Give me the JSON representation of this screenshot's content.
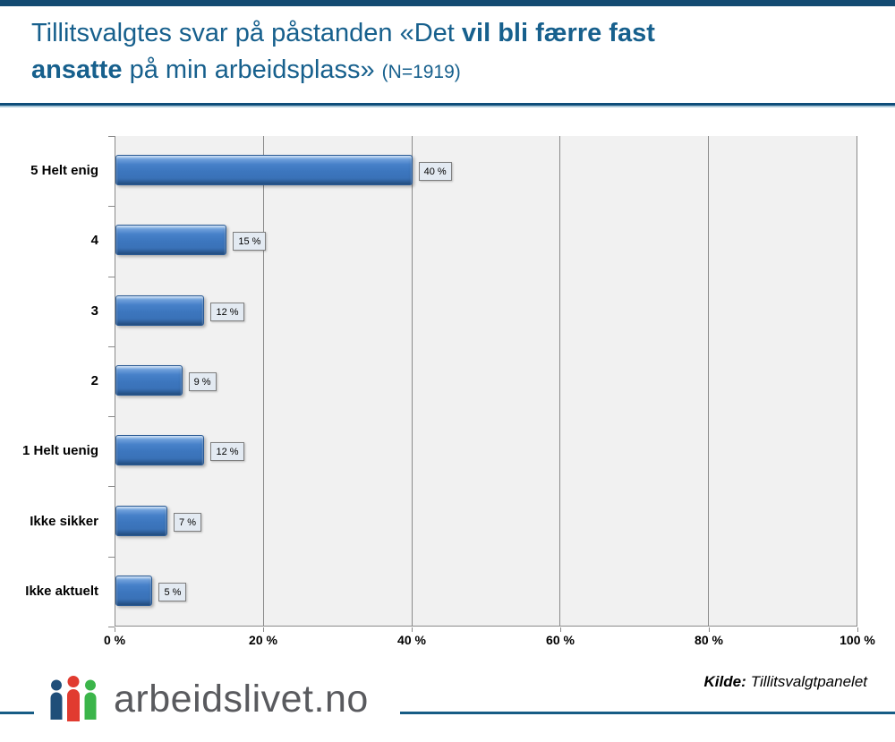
{
  "header": {
    "title_line1_regular": "Tillitsvalgtes svar på påstanden «Det ",
    "title_line1_bold": "vil bli færre fast",
    "title_line2_bold": "ansatte",
    "title_line2_regular": " på min arbeidsplass»",
    "title_n": "(N=1919)"
  },
  "chart_data": {
    "type": "bar",
    "orientation": "horizontal",
    "title": "Tillitsvalgtes svar på påstanden «Det vil bli færre fast ansatte på min arbeidsplass» (N=1919)",
    "categories": [
      "5 Helt enig",
      "4",
      "3",
      "2",
      "1 Helt uenig",
      "Ikke sikker",
      "Ikke aktuelt"
    ],
    "values": [
      40,
      15,
      12,
      9,
      12,
      7,
      5
    ],
    "value_labels": [
      "40 %",
      "15 %",
      "12 %",
      "9 %",
      "12 %",
      "7 %",
      "5 %"
    ],
    "x_tick_values": [
      0,
      20,
      40,
      60,
      80,
      100
    ],
    "x_tick_labels": [
      "0 %",
      "20 %",
      "40 %",
      "60 %",
      "80 %",
      "100 %"
    ],
    "xlim": [
      0,
      100
    ],
    "grid": true,
    "legend": false,
    "xlabel": "",
    "ylabel": ""
  },
  "footer": {
    "source_label": "Kilde:",
    "source_value": "Tillitsvalgtpanelet",
    "logo_text": "arbeidslivet.no",
    "logo_icon": "three-people-icon"
  },
  "colors": {
    "title_blue": "#17608D",
    "top_bar_blue": "#134B72",
    "rule_blue": "#0F4E7A",
    "footer_line_blue": "#175C85",
    "bar_fill": "#3B76C0",
    "bar_border": "#2A5A94",
    "plot_background": "#F1F1F1",
    "gridline_gray": "#8A8A8A",
    "value_box_bg": "#E3EAF2",
    "value_box_border": "#7F7F7F",
    "logo_blue": "#1F4E79",
    "logo_red": "#E13B30",
    "logo_green": "#3BB54A",
    "logo_text_gray": "#595A5E"
  }
}
